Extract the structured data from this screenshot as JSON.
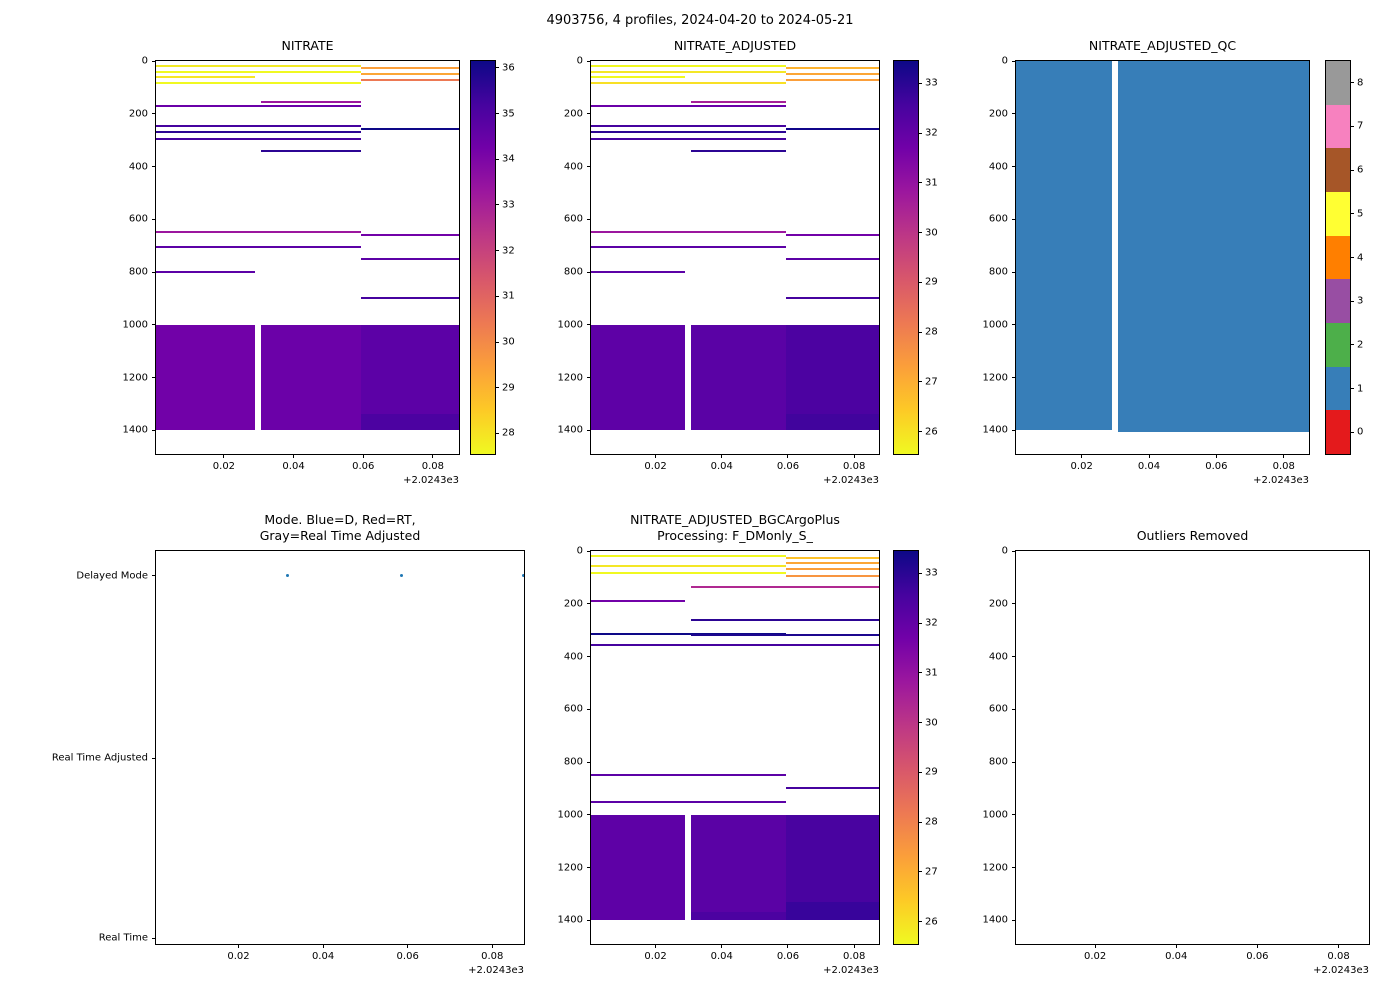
{
  "figure": {
    "title": "4903756, 4 profiles, 2024-04-20 to 2024-05-21"
  },
  "chart_data": [
    {
      "type": "heatmap",
      "title": "NITRATE",
      "x": {
        "lim": [
          0.0005,
          0.0875
        ],
        "ticks": [
          0.02,
          0.04,
          0.06,
          0.08
        ],
        "offset": "+2.0243e3"
      },
      "y": {
        "lim": [
          0,
          1490
        ],
        "ticks": [
          0,
          200,
          400,
          600,
          800,
          1000,
          1200,
          1400
        ],
        "inverted": true
      },
      "columns": {
        "c1": [
          0.0005,
          0.029
        ],
        "c2": [
          0.0307,
          0.0593
        ],
        "c3": [
          0.0593,
          0.0875
        ]
      },
      "segments": [
        {
          "depth": 20,
          "cols": "c12",
          "color": "#f2ea25"
        },
        {
          "depth": 25,
          "cols": "c3",
          "color": "#fb9f3a"
        },
        {
          "depth": 42,
          "cols": "c12",
          "color": "#f0f921"
        },
        {
          "depth": 48,
          "cols": "c3",
          "color": "#fca636"
        },
        {
          "depth": 62,
          "cols": "c1",
          "color": "#f6e626"
        },
        {
          "depth": 72,
          "cols": "c3",
          "color": "#ed7953"
        },
        {
          "depth": 85,
          "cols": "c12",
          "color": "#f0f921"
        },
        {
          "depth": 155,
          "cols": "c2",
          "color": "#9c179e"
        },
        {
          "depth": 170,
          "cols": "c12",
          "color": "#6a00a8"
        },
        {
          "depth": 245,
          "cols": "c12",
          "color": "#46039f"
        },
        {
          "depth": 258,
          "cols": "c3",
          "color": "#0d0887"
        },
        {
          "depth": 268,
          "cols": "c12",
          "color": "#2c0594"
        },
        {
          "depth": 295,
          "cols": "c12",
          "color": "#46039f"
        },
        {
          "depth": 340,
          "cols": "c2",
          "color": "#2c0594"
        },
        {
          "depth": 650,
          "cols": "c12",
          "color": "#9c179e"
        },
        {
          "depth": 660,
          "cols": "c3",
          "color": "#7201a8"
        },
        {
          "depth": 705,
          "cols": "c12",
          "color": "#5c01a6"
        },
        {
          "depth": 750,
          "cols": "c3",
          "color": "#5c01a6"
        },
        {
          "depth": 800,
          "cols": "c1",
          "color": "#5c01a6"
        },
        {
          "depth": 900,
          "cols": "c3",
          "color": "#46039f"
        }
      ],
      "blocks": [
        {
          "d0": 1000,
          "d1": 1400,
          "cols": "c1",
          "color": "#7101a8"
        },
        {
          "d0": 1000,
          "d1": 1400,
          "cols": "c2",
          "color": "#6b01a8"
        },
        {
          "d0": 1000,
          "d1": 1340,
          "cols": "c3",
          "color": "#5c01a6"
        },
        {
          "d0": 1340,
          "d1": 1400,
          "cols": "c3",
          "color": "#4c02a1"
        }
      ],
      "colorbar": {
        "vmin": 27.55,
        "vmax": 36.15,
        "ticks": [
          28,
          29,
          30,
          31,
          32,
          33,
          34,
          35,
          36
        ],
        "gradient_top_to_bottom": [
          "#0d0887",
          "#46039f",
          "#7201a8",
          "#9c179e",
          "#bd3786",
          "#d8576b",
          "#ed7953",
          "#fb9f3a",
          "#fdca26",
          "#f0f921"
        ]
      }
    },
    {
      "type": "heatmap",
      "title": "NITRATE_ADJUSTED",
      "x": {
        "lim": [
          0.0005,
          0.0875
        ],
        "ticks": [
          0.02,
          0.04,
          0.06,
          0.08
        ],
        "offset": "+2.0243e3"
      },
      "y": {
        "lim": [
          0,
          1490
        ],
        "ticks": [
          0,
          200,
          400,
          600,
          800,
          1000,
          1200,
          1400
        ],
        "inverted": true
      },
      "columns": {
        "c1": [
          0.0005,
          0.029
        ],
        "c2": [
          0.0307,
          0.0593
        ],
        "c3": [
          0.0593,
          0.0875
        ]
      },
      "segments": [
        {
          "depth": 20,
          "cols": "c12",
          "color": "#f0f921"
        },
        {
          "depth": 25,
          "cols": "c3",
          "color": "#fdb32f"
        },
        {
          "depth": 42,
          "cols": "c12",
          "color": "#f4e726"
        },
        {
          "depth": 48,
          "cols": "c3",
          "color": "#fca636"
        },
        {
          "depth": 62,
          "cols": "c1",
          "color": "#f0f921"
        },
        {
          "depth": 72,
          "cols": "c3",
          "color": "#fb9f3a"
        },
        {
          "depth": 85,
          "cols": "c12",
          "color": "#f8e025"
        },
        {
          "depth": 155,
          "cols": "c2",
          "color": "#a62098"
        },
        {
          "depth": 170,
          "cols": "c12",
          "color": "#6a00a8"
        },
        {
          "depth": 245,
          "cols": "c12",
          "color": "#46039f"
        },
        {
          "depth": 258,
          "cols": "c3",
          "color": "#10058a"
        },
        {
          "depth": 268,
          "cols": "c12",
          "color": "#2c0594"
        },
        {
          "depth": 295,
          "cols": "c12",
          "color": "#46039f"
        },
        {
          "depth": 340,
          "cols": "c2",
          "color": "#2c0594"
        },
        {
          "depth": 650,
          "cols": "c12",
          "color": "#9c179e"
        },
        {
          "depth": 660,
          "cols": "c3",
          "color": "#7201a8"
        },
        {
          "depth": 705,
          "cols": "c12",
          "color": "#5c01a6"
        },
        {
          "depth": 750,
          "cols": "c3",
          "color": "#5c01a6"
        },
        {
          "depth": 800,
          "cols": "c1",
          "color": "#5c01a6"
        },
        {
          "depth": 900,
          "cols": "c3",
          "color": "#46039f"
        }
      ],
      "blocks": [
        {
          "d0": 1000,
          "d1": 1400,
          "cols": "c1",
          "color": "#5e01a6"
        },
        {
          "d0": 1000,
          "d1": 1400,
          "cols": "c2",
          "color": "#5a02a5"
        },
        {
          "d0": 1000,
          "d1": 1340,
          "cols": "c3",
          "color": "#4c02a1"
        },
        {
          "d0": 1340,
          "d1": 1400,
          "cols": "c3",
          "color": "#41049d"
        }
      ],
      "colorbar": {
        "vmin": 25.55,
        "vmax": 33.45,
        "ticks": [
          26,
          27,
          28,
          29,
          30,
          31,
          32,
          33
        ],
        "gradient_top_to_bottom": [
          "#0d0887",
          "#46039f",
          "#7201a8",
          "#9c179e",
          "#bd3786",
          "#d8576b",
          "#ed7953",
          "#fb9f3a",
          "#fdca26",
          "#f0f921"
        ]
      }
    },
    {
      "type": "heatmap",
      "title": "NITRATE_ADJUSTED_QC",
      "x": {
        "lim": [
          0.0005,
          0.0875
        ],
        "ticks": [
          0.02,
          0.04,
          0.06,
          0.08
        ],
        "offset": "+2.0243e3"
      },
      "y": {
        "lim": [
          0,
          1490
        ],
        "ticks": [
          0,
          200,
          400,
          600,
          800,
          1000,
          1200,
          1400
        ],
        "inverted": true
      },
      "columns": {
        "c1": [
          0.0005,
          0.029
        ],
        "c2": [
          0.0307,
          0.0593
        ],
        "c3": [
          0.0593,
          0.0875
        ]
      },
      "segments": [],
      "blocks": [
        {
          "d0": 0,
          "d1": 1400,
          "cols": "c1",
          "color": "#377eb8"
        },
        {
          "d0": 0,
          "d1": 1408,
          "cols": "c23",
          "color": "#377eb8"
        }
      ],
      "colorbar": {
        "discrete": true,
        "ticks": [
          0,
          1,
          2,
          3,
          4,
          5,
          6,
          7,
          8
        ],
        "colors_bottom_to_top": [
          "#e41a1c",
          "#377eb8",
          "#4daf4a",
          "#984ea3",
          "#ff7f00",
          "#ffff33",
          "#a65628",
          "#f781bf",
          "#999999"
        ]
      }
    },
    {
      "type": "scatter",
      "title": "Mode. Blue=D, Red=RT,\nGray=Real Time Adjusted",
      "x": {
        "lim": [
          0.0005,
          0.0875
        ],
        "ticks": [
          0.02,
          0.04,
          0.06,
          0.08
        ],
        "offset": "+2.0243e3"
      },
      "y_categories": [
        {
          "label": "Delayed Mode",
          "f": 0.063
        },
        {
          "label": "Real Time Adjusted",
          "f": 0.527
        },
        {
          "label": "Real Time",
          "f": 0.985
        }
      ],
      "points": [
        {
          "x": 0.0315,
          "category": "Delayed Mode"
        },
        {
          "x": 0.0585,
          "category": "Delayed Mode"
        },
        {
          "x": 0.0873,
          "category": "Delayed Mode"
        }
      ],
      "point_color": "#1f77b4"
    },
    {
      "type": "heatmap",
      "title": "NITRATE_ADJUSTED_BGCArgoPlus\nProcessing: F_DMonly_S_",
      "x": {
        "lim": [
          0.0005,
          0.0875
        ],
        "ticks": [
          0.02,
          0.04,
          0.06,
          0.08
        ],
        "offset": "+2.0243e3"
      },
      "y": {
        "lim": [
          0,
          1490
        ],
        "ticks": [
          0,
          200,
          400,
          600,
          800,
          1000,
          1200,
          1400
        ],
        "inverted": true
      },
      "columns": {
        "c1": [
          0.0005,
          0.029
        ],
        "c2": [
          0.0307,
          0.0593
        ],
        "c3": [
          0.0593,
          0.0875
        ]
      },
      "segments": [
        {
          "depth": 20,
          "cols": "c12",
          "color": "#f0f921"
        },
        {
          "depth": 28,
          "cols": "c3",
          "color": "#fdc229"
        },
        {
          "depth": 45,
          "cols": "c3",
          "color": "#fca636"
        },
        {
          "depth": 55,
          "cols": "c12",
          "color": "#f4e726"
        },
        {
          "depth": 70,
          "cols": "c3",
          "color": "#fb9f3a"
        },
        {
          "depth": 85,
          "cols": "c12",
          "color": "#f0f921"
        },
        {
          "depth": 95,
          "cols": "c3",
          "color": "#f89540"
        },
        {
          "depth": 135,
          "cols": "c23",
          "color": "#b02991"
        },
        {
          "depth": 190,
          "cols": "c1",
          "color": "#7201a8"
        },
        {
          "depth": 262,
          "cols": "c23",
          "color": "#2c0594"
        },
        {
          "depth": 315,
          "cols": "c12",
          "color": "#0d0887"
        },
        {
          "depth": 318,
          "cols": "c23",
          "color": "#1c068e"
        },
        {
          "depth": 358,
          "cols": "c123",
          "color": "#46039f"
        },
        {
          "depth": 850,
          "cols": "c12",
          "color": "#5c01a6"
        },
        {
          "depth": 900,
          "cols": "c3",
          "color": "#46039f"
        },
        {
          "depth": 950,
          "cols": "c12",
          "color": "#5c01a6"
        }
      ],
      "blocks": [
        {
          "d0": 1000,
          "d1": 1400,
          "cols": "c1",
          "color": "#5e01a6"
        },
        {
          "d0": 1000,
          "d1": 1370,
          "cols": "c2",
          "color": "#5a02a5"
        },
        {
          "d0": 1370,
          "d1": 1400,
          "cols": "c2",
          "color": "#4c02a1"
        },
        {
          "d0": 1000,
          "d1": 1330,
          "cols": "c3",
          "color": "#4903a0"
        },
        {
          "d0": 1330,
          "d1": 1400,
          "cols": "c3",
          "color": "#38049b"
        }
      ],
      "colorbar": {
        "vmin": 25.55,
        "vmax": 33.45,
        "ticks": [
          26,
          27,
          28,
          29,
          30,
          31,
          32,
          33
        ],
        "gradient_top_to_bottom": [
          "#0d0887",
          "#46039f",
          "#7201a8",
          "#9c179e",
          "#bd3786",
          "#d8576b",
          "#ed7953",
          "#fb9f3a",
          "#fdca26",
          "#f0f921"
        ]
      }
    },
    {
      "type": "empty",
      "title": "Outliers Removed",
      "x": {
        "lim": [
          0.0005,
          0.0875
        ],
        "ticks": [
          0.02,
          0.04,
          0.06,
          0.08
        ],
        "offset": "+2.0243e3"
      },
      "y": {
        "lim": [
          0,
          1490
        ],
        "ticks": [
          0,
          200,
          400,
          600,
          800,
          1000,
          1200,
          1400
        ],
        "inverted": true
      },
      "segments": [],
      "blocks": []
    }
  ]
}
